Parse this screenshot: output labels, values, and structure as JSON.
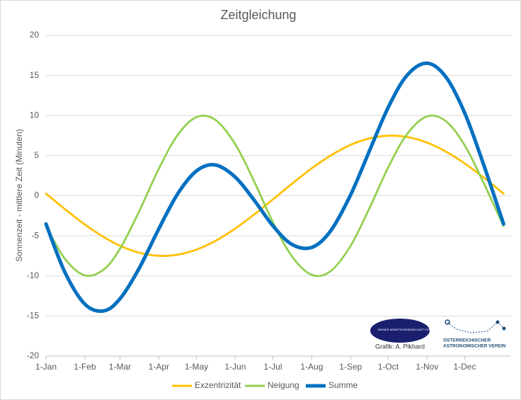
{
  "chart_data": {
    "type": "line",
    "title": "Zeitgleichung",
    "y_label": "Sonnenzeit - mittlere Zeit (Minuten)",
    "x": [
      0,
      15,
      31,
      46,
      59,
      74,
      90,
      105,
      120,
      135,
      151,
      166,
      181,
      196,
      212,
      227,
      243,
      258,
      273,
      288,
      304,
      319,
      334,
      349,
      365
    ],
    "series": [
      {
        "name": "Exzentrizität",
        "color": "#FFC000",
        "values": [
          0.26,
          -1.66,
          -3.59,
          -5.15,
          -6.23,
          -7.09,
          -7.49,
          -7.35,
          -6.72,
          -5.64,
          -4.09,
          -2.34,
          -0.46,
          1.47,
          3.42,
          5.01,
          6.35,
          7.15,
          7.49,
          7.33,
          6.63,
          5.51,
          4.03,
          2.3,
          0.26
        ]
      },
      {
        "name": "Neigung",
        "color": "#92D050",
        "values": [
          -3.78,
          -7.86,
          -9.93,
          -9.21,
          -6.62,
          -2.05,
          3.37,
          7.58,
          9.81,
          9.48,
          6.41,
          1.8,
          -3.29,
          -7.52,
          -9.86,
          -9.4,
          -6.23,
          -1.55,
          3.54,
          7.69,
          9.9,
          9.3,
          6.29,
          1.63,
          -3.78
        ]
      },
      {
        "name": "Summe",
        "color": "#0070C0",
        "values": [
          -3.52,
          -9.52,
          -13.52,
          -14.36,
          -12.85,
          -9.14,
          -4.12,
          0.23,
          3.09,
          3.84,
          2.32,
          -0.54,
          -3.75,
          -6.05,
          -6.44,
          -4.39,
          0.12,
          5.6,
          11.03,
          15.02,
          16.53,
          14.81,
          10.32,
          3.93,
          -3.52
        ]
      }
    ],
    "xlim": [
      0,
      371
    ],
    "xticks": [
      {
        "value": 0,
        "label": "1-Jan"
      },
      {
        "value": 31,
        "label": "1-Feb"
      },
      {
        "value": 59,
        "label": "1-Mar"
      },
      {
        "value": 90,
        "label": "1-Apr"
      },
      {
        "value": 120,
        "label": "1-May"
      },
      {
        "value": 151,
        "label": "1-Jun"
      },
      {
        "value": 181,
        "label": "1-Jul"
      },
      {
        "value": 212,
        "label": "1-Aug"
      },
      {
        "value": 243,
        "label": "1-Sep"
      },
      {
        "value": 273,
        "label": "1-Oct"
      },
      {
        "value": 304,
        "label": "1-Nov"
      },
      {
        "value": 334,
        "label": "1-Dec"
      }
    ],
    "ylim": [
      -20,
      20
    ],
    "yticks": [
      -20,
      -15,
      -10,
      -5,
      0,
      5,
      10,
      15,
      20
    ],
    "grid": true,
    "legend": "bottom",
    "annotations": [
      "WIENER ARBEITSGEMEINSCHAFT FÜR ASTRONOMIE",
      "Grafik: A. Pikhard",
      "ÖSTERREICHISCHER",
      "ASTRONOMISCHER VEREIN"
    ]
  }
}
